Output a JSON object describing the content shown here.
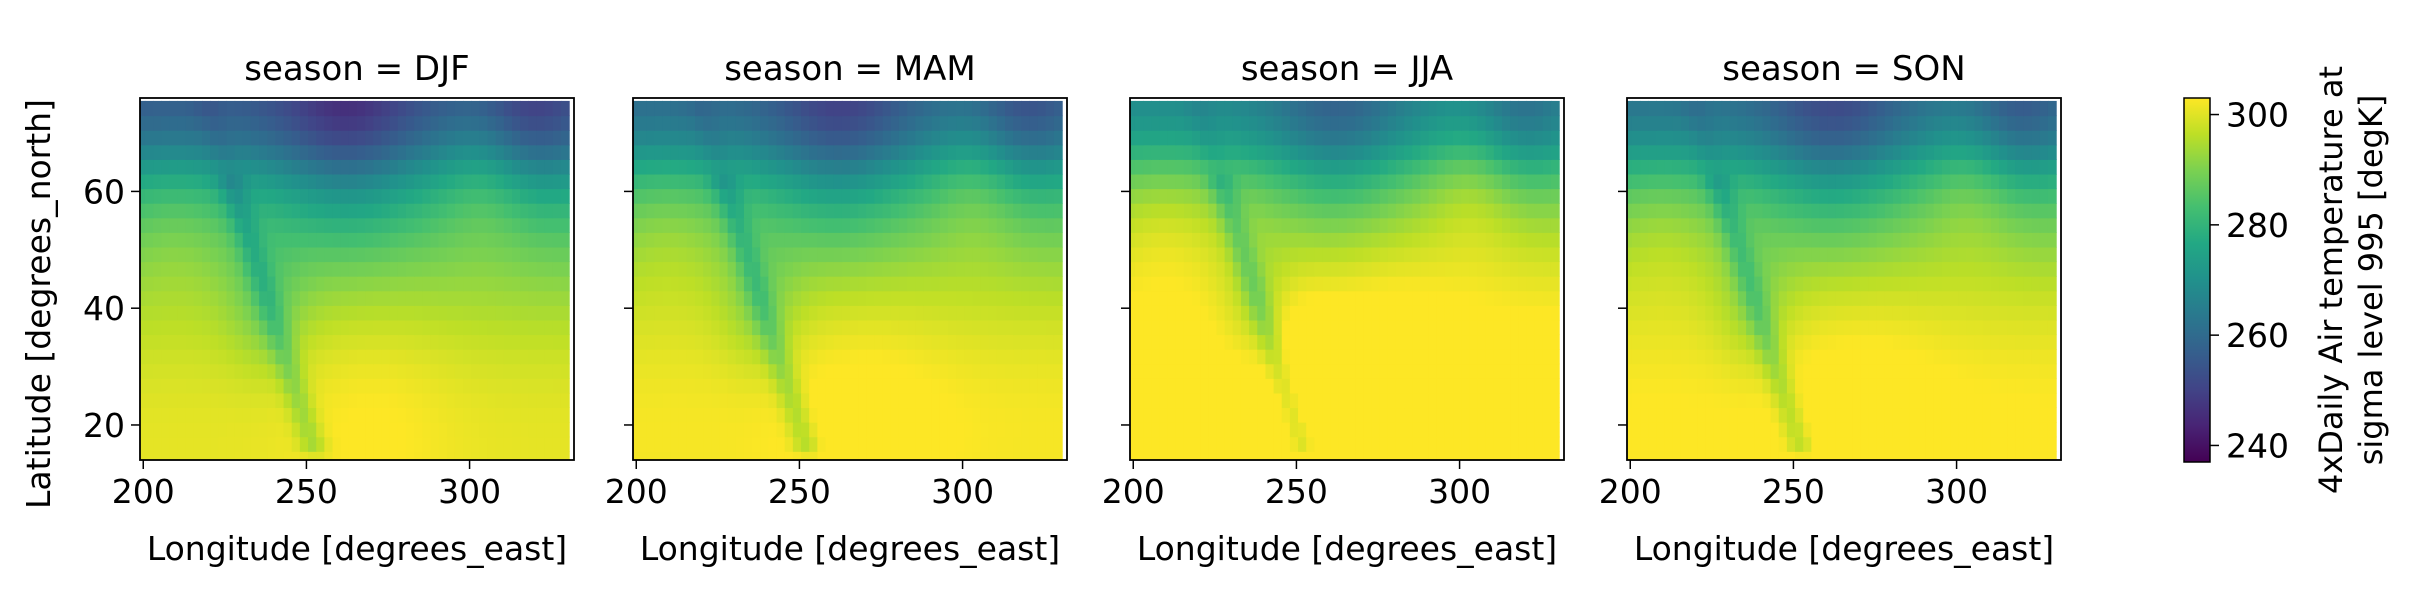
{
  "chart_data": {
    "type": "heatmap",
    "facet_label": "season",
    "panels": [
      {
        "season": "DJF",
        "title": "season = DJF"
      },
      {
        "season": "MAM",
        "title": "season = MAM"
      },
      {
        "season": "JJA",
        "title": "season = JJA"
      },
      {
        "season": "SON",
        "title": "season = SON"
      }
    ],
    "xlabel": "Longitude [degrees_east]",
    "ylabel": "Latitude [degrees_north]",
    "xlim": [
      199,
      332
    ],
    "ylim": [
      14,
      76
    ],
    "xticks": [
      200,
      250,
      300
    ],
    "yticks": [
      20,
      40,
      60
    ],
    "colorbar": {
      "label_lines": [
        "4xDaily Air temperature at",
        "sigma level 995 [degK]"
      ],
      "range": [
        237,
        303
      ],
      "ticks": [
        240,
        260,
        280,
        300
      ],
      "colormap": "viridis"
    },
    "season_offsets": {
      "DJF": 0,
      "MAM": 4,
      "JJA": 12,
      "SON": 6
    },
    "grid": false,
    "legend": "colorbar-right"
  }
}
